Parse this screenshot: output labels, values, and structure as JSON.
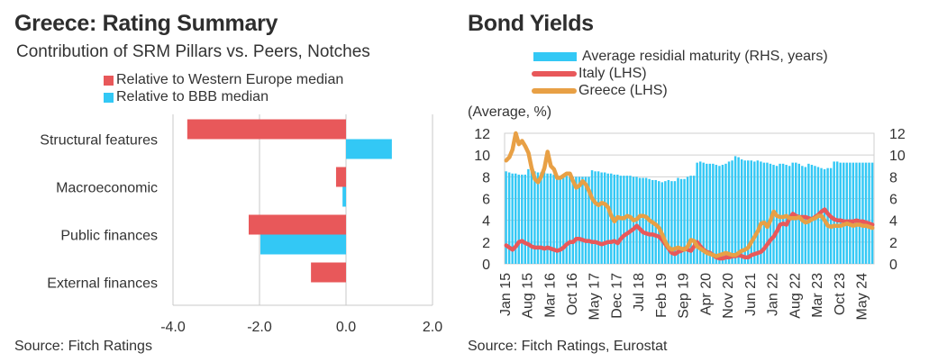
{
  "left_panel": {
    "title": "Greece: Rating Summary",
    "subtitle": "Contribution of SRM Pillars vs. Peers, Notches",
    "source": "Source: Fitch Ratings"
  },
  "right_panel": {
    "title": "Bond Yields",
    "unit_label": "(Average, %)",
    "source": "Source: Fitch Ratings, Eurostat"
  },
  "chart_data": [
    {
      "type": "bar",
      "orientation": "horizontal",
      "title": "Greece: Rating Summary",
      "subtitle": "Contribution of SRM Pillars vs. Peers, Notches",
      "categories": [
        "Structural features",
        "Macroeconomic",
        "Public finances",
        "External finances"
      ],
      "series": [
        {
          "name": "Relative to Western Europe median",
          "color": "#e8585a",
          "values": [
            -3.67,
            -0.23,
            -2.25,
            -0.81
          ]
        },
        {
          "name": "Relative to BBB median",
          "color": "#33c8f5",
          "values": [
            1.06,
            -0.08,
            -1.98,
            0.0
          ]
        }
      ],
      "xlim": [
        -4.0,
        2.0
      ],
      "xticks": [
        -4.0,
        -2.0,
        0.0,
        2.0
      ],
      "xtick_labels": [
        "-4.0",
        "-2.0",
        "0.0",
        "2.0"
      ],
      "grid": true,
      "legend": "top"
    },
    {
      "type": "line",
      "title": "Bond Yields",
      "ylabel": "(Average, %)",
      "x_start": "Jan 15",
      "frequency": "monthly",
      "xtick_labels": [
        "Jan 15",
        "Aug 15",
        "Mar 16",
        "Oct 16",
        "May 17",
        "Dec 17",
        "Jul 18",
        "Feb 19",
        "Sep 19",
        "Apr 20",
        "Nov 20",
        "Jun 21",
        "Jan 22",
        "Aug 22",
        "Mar 23",
        "Oct 23",
        "May 24"
      ],
      "ylim_left": [
        0,
        12
      ],
      "ylim_right": [
        0,
        12
      ],
      "yticks": [
        0,
        2,
        4,
        6,
        8,
        10,
        12
      ],
      "grid": true,
      "legend": "top",
      "series": [
        {
          "name": "Average residial maturity (RHS, years)",
          "axis": "right",
          "kind": "bar",
          "color": "#33c8f5",
          "values": [
            8.5,
            8.4,
            8.3,
            8.3,
            8.2,
            8.2,
            8.2,
            8.7,
            8.6,
            8.5,
            8.4,
            8.4,
            8.4,
            8.3,
            8.3,
            8.2,
            8.2,
            8.1,
            8.1,
            8.1,
            8.0,
            8.0,
            8.0,
            8.0,
            8.0,
            8.0,
            8.0,
            8.6,
            8.5,
            8.5,
            8.4,
            8.4,
            8.3,
            8.3,
            8.2,
            8.2,
            8.1,
            8.1,
            8.1,
            8.1,
            8.0,
            8.0,
            7.9,
            7.9,
            7.9,
            7.8,
            7.7,
            7.7,
            7.6,
            7.5,
            7.6,
            7.7,
            7.6,
            7.6,
            7.9,
            7.8,
            7.8,
            8.0,
            8.1,
            8.1,
            9.3,
            9.4,
            9.3,
            9.2,
            9.2,
            9.2,
            9.1,
            9.0,
            9.1,
            9.2,
            9.4,
            9.5,
            9.9,
            9.8,
            9.6,
            9.5,
            9.5,
            9.5,
            9.4,
            9.5,
            9.4,
            9.3,
            9.3,
            9.2,
            9.1,
            9.0,
            9.2,
            9.2,
            9.1,
            9.0,
            9.3,
            9.3,
            9.2,
            9.0,
            8.9,
            9.2,
            9.1,
            9.0,
            8.9,
            8.8,
            8.7,
            8.8,
            8.8,
            9.4,
            9.4,
            9.3,
            9.3,
            9.3,
            9.3,
            9.3,
            9.3,
            9.3,
            9.3,
            9.3,
            9.3,
            9.3
          ]
        },
        {
          "name": "Italy (LHS)",
          "axis": "left",
          "kind": "line",
          "color": "#e8585a",
          "values": [
            1.7,
            1.5,
            1.3,
            1.6,
            2.0,
            2.1,
            1.9,
            1.8,
            1.6,
            1.5,
            1.5,
            1.5,
            1.4,
            1.5,
            1.4,
            1.3,
            1.2,
            1.3,
            1.5,
            1.8,
            2.0,
            2.0,
            2.3,
            2.3,
            2.2,
            2.1,
            2.1,
            2.0,
            2.0,
            1.9,
            1.8,
            1.9,
            2.0,
            2.0,
            2.1,
            1.9,
            2.3,
            2.6,
            2.8,
            3.0,
            3.2,
            3.5,
            3.2,
            2.9,
            2.8,
            2.7,
            2.7,
            2.6,
            2.5,
            2.2,
            1.8,
            1.4,
            1.0,
            0.9,
            1.1,
            1.2,
            1.4,
            1.3,
            1.2,
            1.6,
            2.0,
            1.6,
            1.3,
            1.1,
            1.0,
            0.8,
            0.6,
            0.5,
            0.5,
            0.6,
            0.6,
            0.7,
            0.7,
            0.8,
            0.7,
            0.6,
            0.6,
            0.8,
            0.9,
            1.0,
            1.1,
            1.4,
            1.8,
            2.2,
            2.5,
            3.0,
            3.6,
            3.7,
            3.6,
            4.2,
            4.6,
            4.4,
            4.3,
            4.3,
            4.3,
            4.2,
            4.1,
            4.3,
            4.5,
            4.8,
            5.0,
            4.6,
            4.3,
            4.1,
            4.0,
            4.0,
            3.9,
            3.9,
            3.9,
            3.9,
            4.0,
            3.9,
            3.9,
            3.8,
            3.7,
            3.6
          ]
        },
        {
          "name": "Greece (LHS)",
          "axis": "left",
          "kind": "line",
          "color": "#e8a045",
          "values": [
            9.5,
            9.8,
            10.5,
            12.0,
            11.0,
            11.3,
            10.8,
            10.2,
            8.8,
            7.8,
            7.5,
            8.0,
            8.8,
            10.3,
            9.0,
            8.7,
            7.9,
            7.9,
            8.1,
            8.3,
            8.3,
            7.6,
            7.0,
            7.2,
            7.6,
            7.3,
            6.7,
            6.0,
            5.6,
            5.4,
            5.6,
            5.5,
            5.2,
            4.4,
            3.9,
            4.3,
            4.2,
            4.2,
            4.4,
            4.3,
            4.0,
            4.1,
            4.4,
            4.4,
            4.3,
            4.0,
            3.8,
            3.6,
            3.3,
            2.7,
            2.0,
            1.5,
            1.3,
            1.4,
            1.5,
            1.4,
            1.3,
            1.6,
            2.2,
            2.1,
            1.6,
            1.4,
            1.2,
            1.0,
            0.9,
            0.8,
            0.7,
            0.8,
            0.9,
            1.0,
            0.9,
            0.8,
            0.8,
            1.0,
            1.2,
            1.3,
            1.5,
            2.0,
            2.5,
            3.0,
            3.7,
            3.8,
            3.4,
            4.0,
            4.8,
            4.4,
            4.3,
            4.3,
            4.4,
            4.2,
            4.2,
            4.2,
            4.3,
            4.0,
            3.8,
            3.9,
            4.1,
            4.2,
            4.4,
            4.4,
            4.0,
            3.5,
            3.4,
            3.5,
            3.5,
            3.5,
            3.6,
            3.7,
            3.6,
            3.5,
            3.6,
            3.6,
            3.5,
            3.5,
            3.4,
            3.3
          ]
        }
      ]
    }
  ]
}
